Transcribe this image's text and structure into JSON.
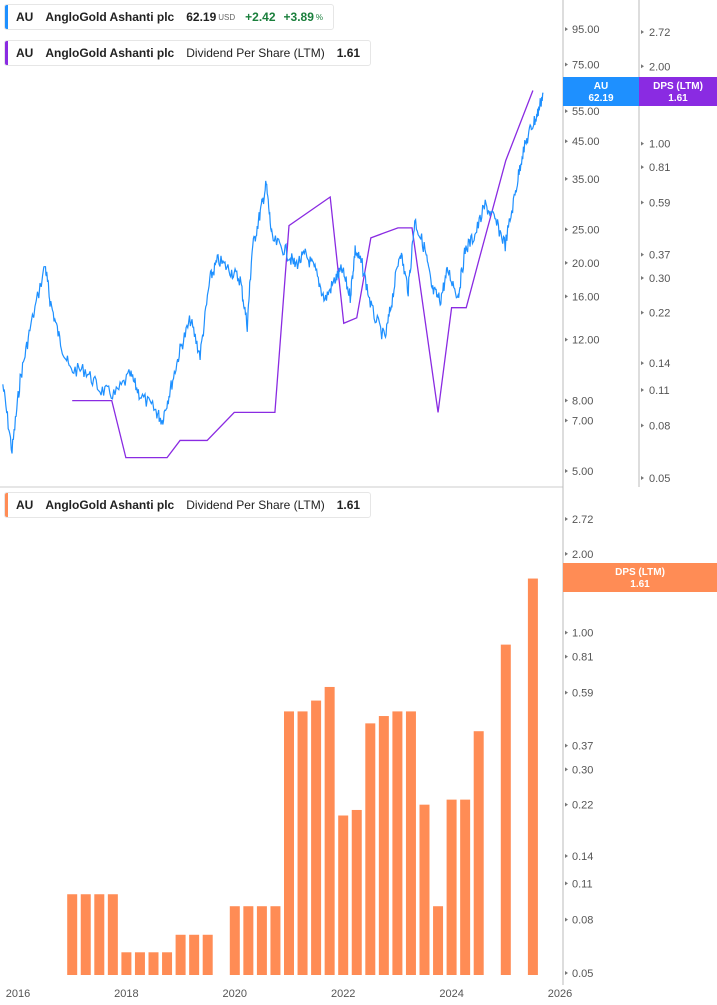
{
  "legend_price": {
    "ticker": "AU",
    "name": "AngloGold Ashanti plc",
    "price": "62.19",
    "currency": "USD",
    "change": "+2.42",
    "change_pct": "+3.89",
    "pct_sign": "%"
  },
  "legend_dps": {
    "ticker": "AU",
    "name": "AngloGold Ashanti plc",
    "metric": "Dividend Per Share (LTM)",
    "value": "1.61"
  },
  "legend_bottom": {
    "ticker": "AU",
    "name": "AngloGold Ashanti plc",
    "metric": "Dividend Per Share (LTM)",
    "value": "1.61"
  },
  "colors": {
    "price": "#1e90ff",
    "dps_line": "#8a2be2",
    "bars": "#ff8c55"
  },
  "tags": {
    "price_label": "AU",
    "price_value": "62.19",
    "dps_label": "DPS (LTM)",
    "dps_value": "1.61"
  },
  "chart_data": [
    {
      "type": "line",
      "title": "AU price",
      "yscale": "log",
      "ylim": [
        5,
        95
      ],
      "yticks": [
        "95.00",
        "75.00",
        "55.00",
        "45.00",
        "35.00",
        "25.00",
        "20.00",
        "16.00",
        "12.00",
        "8.00",
        "7.00",
        "5.00"
      ],
      "points": [
        [
          2015.72,
          8.9
        ],
        [
          2015.89,
          5.7
        ],
        [
          2016.04,
          9.2
        ],
        [
          2016.22,
          12.8
        ],
        [
          2016.5,
          19.7
        ],
        [
          2016.59,
          15.6
        ],
        [
          2016.77,
          12.0
        ],
        [
          2016.96,
          9.8
        ],
        [
          2017.24,
          9.8
        ],
        [
          2017.51,
          8.6
        ],
        [
          2017.79,
          8.3
        ],
        [
          2018.07,
          9.5
        ],
        [
          2018.25,
          8.3
        ],
        [
          2018.53,
          7.5
        ],
        [
          2018.66,
          7.0
        ],
        [
          2018.81,
          8.6
        ],
        [
          2018.99,
          11.2
        ],
        [
          2019.18,
          13.7
        ],
        [
          2019.36,
          10.8
        ],
        [
          2019.54,
          17.9
        ],
        [
          2019.69,
          20.4
        ],
        [
          2019.91,
          19.1
        ],
        [
          2020.1,
          17.9
        ],
        [
          2020.23,
          13.2
        ],
        [
          2020.32,
          21.8
        ],
        [
          2020.46,
          27.5
        ],
        [
          2020.58,
          33.7
        ],
        [
          2020.69,
          23.3
        ],
        [
          2020.93,
          21.8
        ],
        [
          2021.11,
          19.7
        ],
        [
          2021.3,
          21.1
        ],
        [
          2021.48,
          19.1
        ],
        [
          2021.66,
          15.6
        ],
        [
          2021.85,
          17.9
        ],
        [
          2021.98,
          19.1
        ],
        [
          2022.13,
          16.0
        ],
        [
          2022.22,
          21.8
        ],
        [
          2022.35,
          19.7
        ],
        [
          2022.53,
          14.6
        ],
        [
          2022.77,
          12.0
        ],
        [
          2022.9,
          15.6
        ],
        [
          2023.05,
          21.8
        ],
        [
          2023.2,
          16.7
        ],
        [
          2023.32,
          26.6
        ],
        [
          2023.51,
          21.8
        ],
        [
          2023.64,
          16.7
        ],
        [
          2023.79,
          15.6
        ],
        [
          2023.93,
          19.1
        ],
        [
          2024.12,
          16.0
        ],
        [
          2024.25,
          21.8
        ],
        [
          2024.43,
          24.1
        ],
        [
          2024.62,
          29.4
        ],
        [
          2024.8,
          26.6
        ],
        [
          2024.99,
          22.6
        ],
        [
          2025.17,
          31.5
        ],
        [
          2025.3,
          41
        ],
        [
          2025.45,
          48.5
        ],
        [
          2025.58,
          53.6
        ],
        [
          2025.69,
          62.19
        ]
      ]
    },
    {
      "type": "line",
      "title": "Dividend Per Share (LTM)",
      "yscale": "log",
      "ylim": [
        0.05,
        2.72
      ],
      "yticks": [
        "2.72",
        "2.00",
        "1.00",
        "0.81",
        "0.59",
        "0.37",
        "0.30",
        "0.22",
        "0.14",
        "0.11",
        "0.08",
        "0.05"
      ],
      "points": [
        [
          2017.0,
          0.1
        ],
        [
          2017.73,
          0.1
        ],
        [
          2017.99,
          0.06
        ],
        [
          2018.75,
          0.06
        ],
        [
          2018.99,
          0.07
        ],
        [
          2019.49,
          0.07
        ],
        [
          2019.99,
          0.09
        ],
        [
          2020.74,
          0.09
        ],
        [
          2021.0,
          0.48
        ],
        [
          2021.76,
          0.62
        ],
        [
          2022.01,
          0.2
        ],
        [
          2022.25,
          0.21
        ],
        [
          2022.51,
          0.43
        ],
        [
          2023.01,
          0.47
        ],
        [
          2023.27,
          0.47
        ],
        [
          2023.75,
          0.09
        ],
        [
          2024.0,
          0.23
        ],
        [
          2024.27,
          0.23
        ],
        [
          2024.5,
          0.35
        ],
        [
          2025.0,
          0.86
        ],
        [
          2025.5,
          1.61
        ]
      ]
    },
    {
      "type": "bar",
      "title": "Dividend Per Share (LTM)",
      "yscale": "log",
      "ylim": [
        0.05,
        2.72
      ],
      "yticks": [
        "2.72",
        "2.00",
        "1.00",
        "0.81",
        "0.59",
        "0.37",
        "0.30",
        "0.22",
        "0.14",
        "0.11",
        "0.08",
        "0.05"
      ],
      "x": [
        2017.0,
        2017.25,
        2017.5,
        2017.75,
        2018.0,
        2018.25,
        2018.5,
        2018.75,
        2019.0,
        2019.25,
        2019.5,
        2020.0,
        2020.25,
        2020.5,
        2020.75,
        2021.0,
        2021.25,
        2021.5,
        2021.75,
        2022.0,
        2022.25,
        2022.5,
        2022.75,
        2023.0,
        2023.25,
        2023.5,
        2023.75,
        2024.0,
        2024.25,
        2024.5,
        2025.0,
        2025.5
      ],
      "values": [
        0.1,
        0.1,
        0.1,
        0.1,
        0.06,
        0.06,
        0.06,
        0.06,
        0.07,
        0.07,
        0.07,
        0.09,
        0.09,
        0.09,
        0.09,
        0.5,
        0.5,
        0.55,
        0.62,
        0.2,
        0.21,
        0.45,
        0.48,
        0.5,
        0.5,
        0.22,
        0.09,
        0.23,
        0.23,
        0.42,
        0.9,
        1.61
      ]
    }
  ],
  "xaxis": {
    "ticks": [
      "2016",
      "2018",
      "2020",
      "2022",
      "2024",
      "2026"
    ]
  }
}
